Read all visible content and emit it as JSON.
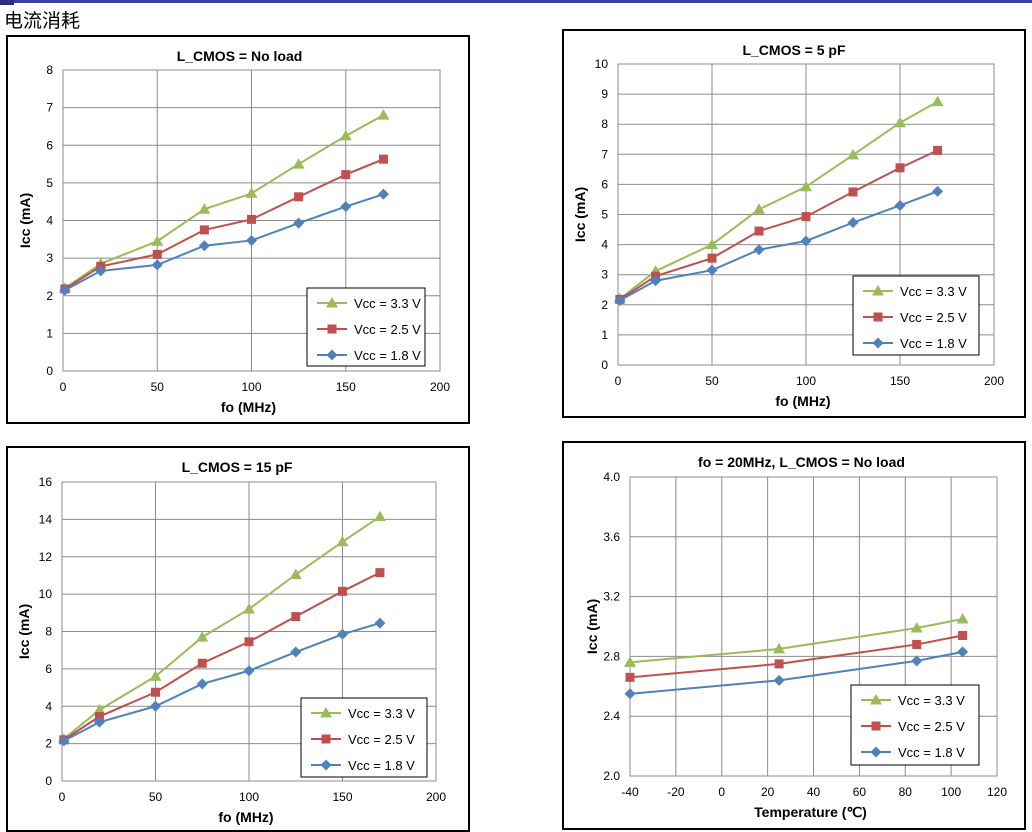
{
  "page": {
    "title": "电流消耗"
  },
  "colors": {
    "vcc33": "#9BBB59",
    "vcc25": "#C0504D",
    "vcc18": "#4F81BD",
    "grid": "#8c8c8c"
  },
  "chart_data": [
    {
      "type": "line",
      "title": "L_CMOS = No load",
      "xlabel": "fo (MHz)",
      "ylabel": "Icc (mA)",
      "xlim": [
        0,
        200
      ],
      "ylim": [
        0,
        8
      ],
      "xticks": [
        0,
        50,
        100,
        150,
        200
      ],
      "yticks": [
        0,
        1,
        2,
        3,
        4,
        5,
        6,
        7,
        8
      ],
      "xtick_labels": [
        "0",
        "50",
        "100",
        "150",
        "200"
      ],
      "ytick_labels": [
        "0",
        "1",
        "2",
        "3",
        "4",
        "5",
        "6",
        "7",
        "8"
      ],
      "grid": true,
      "legend_position": "bottom-right",
      "x": [
        1,
        20,
        50,
        75,
        100,
        125,
        150,
        170
      ],
      "series": [
        {
          "name": "Vcc = 3.3 V",
          "marker": "triangle",
          "values": [
            2.2,
            2.85,
            3.45,
            4.3,
            4.72,
            5.5,
            6.25,
            6.8
          ]
        },
        {
          "name": "Vcc = 2.5 V",
          "marker": "square",
          "values": [
            2.18,
            2.78,
            3.1,
            3.75,
            4.03,
            4.63,
            5.22,
            5.63
          ]
        },
        {
          "name": "Vcc = 1.8 V",
          "marker": "diamond",
          "values": [
            2.15,
            2.66,
            2.82,
            3.33,
            3.47,
            3.93,
            4.37,
            4.7
          ]
        }
      ]
    },
    {
      "type": "line",
      "title": "L_CMOS = 5 pF",
      "xlabel": "fo (MHz)",
      "ylabel": "Icc (mA)",
      "xlim": [
        0,
        200
      ],
      "ylim": [
        0,
        10
      ],
      "xticks": [
        0,
        50,
        100,
        150,
        200
      ],
      "yticks": [
        0,
        1,
        2,
        3,
        4,
        5,
        6,
        7,
        8,
        9,
        10
      ],
      "xtick_labels": [
        "0",
        "50",
        "100",
        "150",
        "200"
      ],
      "ytick_labels": [
        "0",
        "1",
        "2",
        "3",
        "4",
        "5",
        "6",
        "7",
        "8",
        "9",
        "10"
      ],
      "grid": true,
      "legend_position": "bottom-right",
      "x": [
        1,
        20,
        50,
        75,
        100,
        125,
        150,
        170
      ],
      "series": [
        {
          "name": "Vcc = 3.3 V",
          "marker": "triangle",
          "values": [
            2.2,
            3.12,
            4.0,
            5.17,
            5.92,
            6.98,
            8.05,
            8.75
          ]
        },
        {
          "name": "Vcc = 2.5 V",
          "marker": "square",
          "values": [
            2.18,
            2.95,
            3.55,
            4.45,
            4.93,
            5.75,
            6.55,
            7.13
          ]
        },
        {
          "name": "Vcc = 1.8 V",
          "marker": "diamond",
          "values": [
            2.15,
            2.8,
            3.15,
            3.83,
            4.12,
            4.73,
            5.3,
            5.77
          ]
        }
      ]
    },
    {
      "type": "line",
      "title": "L_CMOS = 15 pF",
      "xlabel": "fo (MHz)",
      "ylabel": "Icc (mA)",
      "xlim": [
        0,
        200
      ],
      "ylim": [
        0,
        16
      ],
      "xticks": [
        0,
        50,
        100,
        150,
        200
      ],
      "yticks": [
        0,
        2,
        4,
        6,
        8,
        10,
        12,
        14,
        16
      ],
      "xtick_labels": [
        "0",
        "50",
        "100",
        "150",
        "200"
      ],
      "ytick_labels": [
        "0",
        "2",
        "4",
        "6",
        "8",
        "10",
        "12",
        "14",
        "16"
      ],
      "grid": true,
      "legend_position": "bottom-right",
      "x": [
        1,
        20,
        50,
        75,
        100,
        125,
        150,
        170
      ],
      "series": [
        {
          "name": "Vcc = 3.3 V",
          "marker": "triangle",
          "values": [
            2.25,
            3.8,
            5.6,
            7.7,
            9.2,
            11.05,
            12.8,
            14.15
          ]
        },
        {
          "name": "Vcc = 2.5 V",
          "marker": "square",
          "values": [
            2.2,
            3.45,
            4.75,
            6.3,
            7.45,
            8.8,
            10.15,
            11.15
          ]
        },
        {
          "name": "Vcc = 1.8 V",
          "marker": "diamond",
          "values": [
            2.15,
            3.15,
            4.0,
            5.2,
            5.9,
            6.9,
            7.85,
            8.45
          ]
        }
      ]
    },
    {
      "type": "line",
      "title": "fo = 20MHz, L_CMOS = No load",
      "xlabel": "Temperature (℃)",
      "ylabel": "Icc (mA)",
      "xlim": [
        -40,
        120
      ],
      "ylim": [
        2.0,
        4.0
      ],
      "xticks": [
        -40,
        -20,
        0,
        20,
        40,
        60,
        80,
        100,
        120
      ],
      "yticks": [
        2.0,
        2.4,
        2.8,
        3.2,
        3.6,
        4.0
      ],
      "xtick_labels": [
        "-40",
        "-20",
        "0",
        "20",
        "40",
        "60",
        "80",
        "100",
        "120"
      ],
      "ytick_labels": [
        "2.0",
        "2.4",
        "2.8",
        "3.2",
        "3.6",
        "4.0"
      ],
      "grid": true,
      "legend_position": "bottom-right",
      "x": [
        -40,
        25,
        85,
        105
      ],
      "series": [
        {
          "name": "Vcc = 3.3 V",
          "marker": "triangle",
          "values": [
            2.76,
            2.85,
            2.99,
            3.05
          ]
        },
        {
          "name": "Vcc = 2.5 V",
          "marker": "square",
          "values": [
            2.66,
            2.75,
            2.88,
            2.94
          ]
        },
        {
          "name": "Vcc = 1.8 V",
          "marker": "diamond",
          "values": [
            2.55,
            2.64,
            2.77,
            2.83
          ]
        }
      ]
    }
  ]
}
